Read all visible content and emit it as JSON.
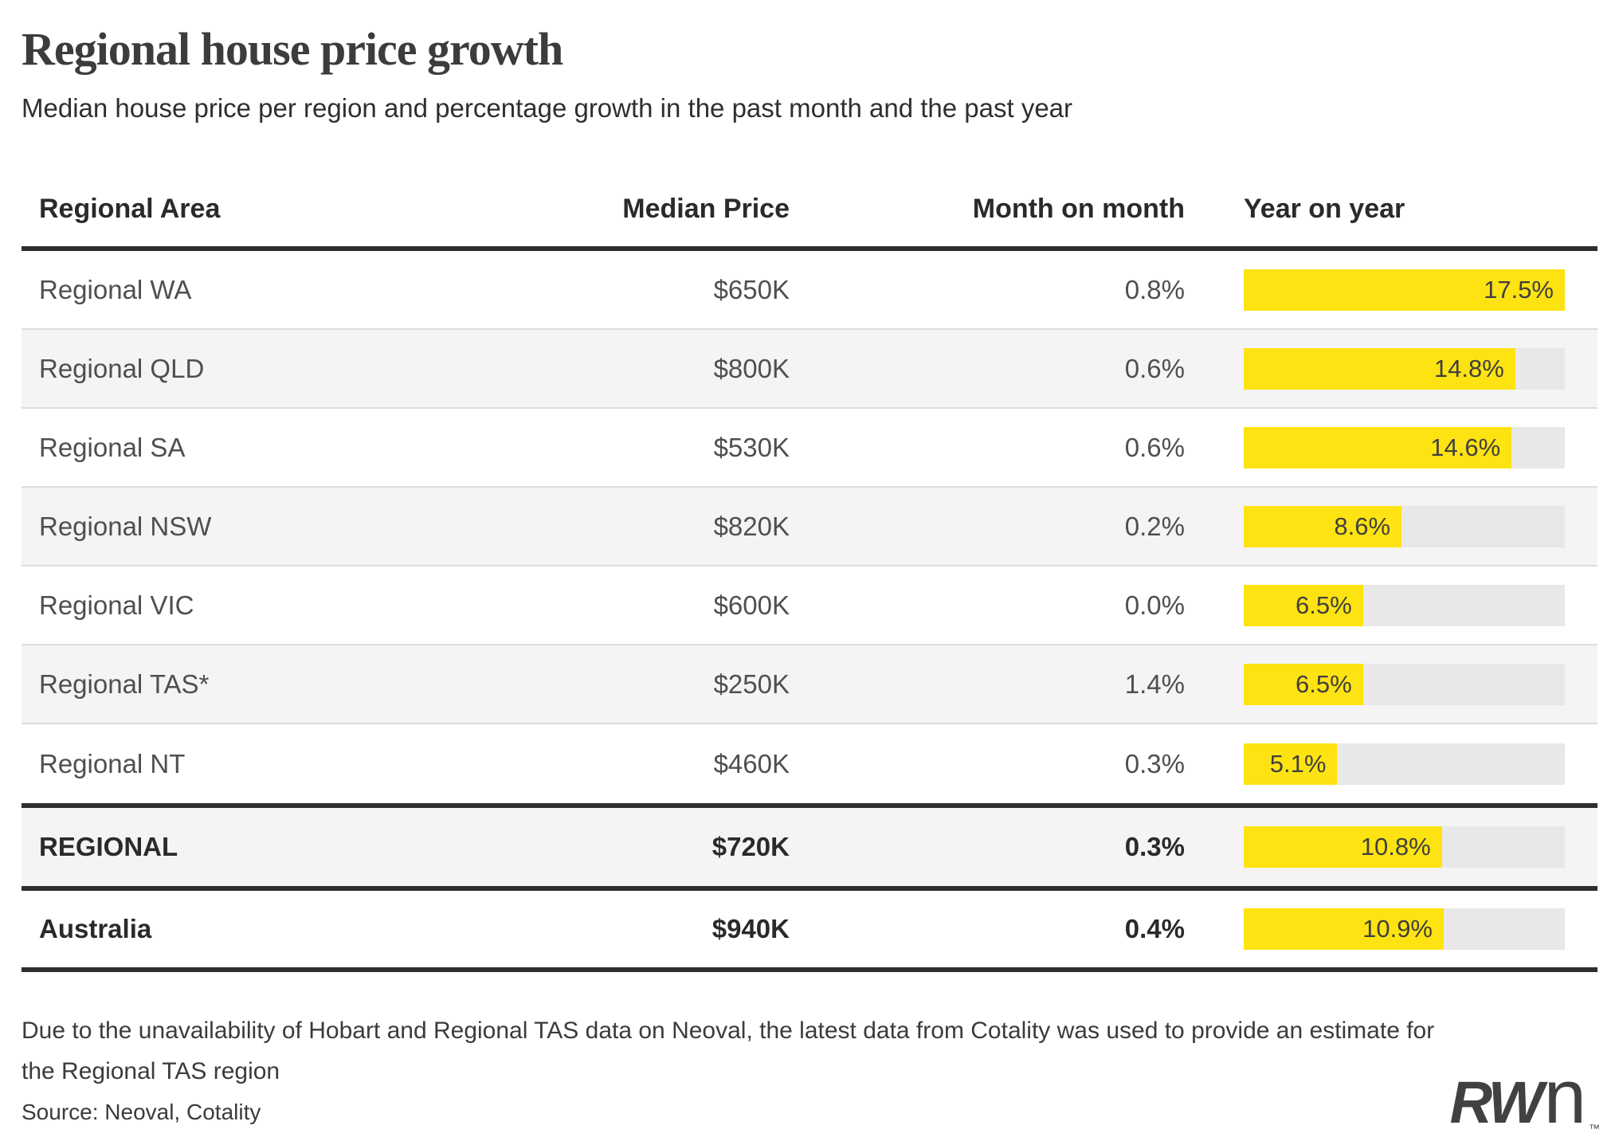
{
  "title": "Regional house price growth",
  "subtitle": "Median house price per region and percentage growth in the past month and the past year",
  "table": {
    "headers": {
      "region": "Regional Area",
      "price": "Median Price",
      "month": "Month on month",
      "year": "Year on year"
    },
    "max_year": 17.5,
    "rows": [
      {
        "region": "Regional WA",
        "price": "$650K",
        "month": "0.8%",
        "year": 17.5,
        "year_label": "17.5%"
      },
      {
        "region": "Regional QLD",
        "price": "$800K",
        "month": "0.6%",
        "year": 14.8,
        "year_label": "14.8%"
      },
      {
        "region": "Regional SA",
        "price": "$530K",
        "month": "0.6%",
        "year": 14.6,
        "year_label": "14.6%"
      },
      {
        "region": "Regional NSW",
        "price": "$820K",
        "month": "0.2%",
        "year": 8.6,
        "year_label": "8.6%"
      },
      {
        "region": "Regional VIC",
        "price": "$600K",
        "month": "0.0%",
        "year": 6.5,
        "year_label": "6.5%"
      },
      {
        "region": "Regional TAS*",
        "price": "$250K",
        "month": "1.4%",
        "year": 6.5,
        "year_label": "6.5%"
      },
      {
        "region": "Regional NT",
        "price": "$460K",
        "month": "0.3%",
        "year": 5.1,
        "year_label": "5.1%"
      },
      {
        "region": "REGIONAL",
        "price": "$720K",
        "month": "0.3%",
        "year": 10.8,
        "year_label": "10.8%"
      },
      {
        "region": "Australia",
        "price": "$940K",
        "month": "0.4%",
        "year": 10.9,
        "year_label": "10.9%"
      }
    ]
  },
  "footnote": "Due to the unavailability of Hobart and Regional TAS data on Neoval, the latest data from Cotality was used to provide an estimate for the Regional TAS region",
  "source": "Source: Neoval, Cotality",
  "logo": {
    "rw": "RW",
    "n": "n",
    "tm": "™"
  },
  "colors": {
    "accent_yellow": "#fde312",
    "bar_track": "#e8e8e8",
    "row_stripe": "#f4f4f4",
    "rule_dark": "#2e2e2e",
    "row_divider": "#dcdcdc"
  },
  "chart_data": {
    "type": "bar",
    "title": "Regional house price growth",
    "subtitle": "Median house price per region and percentage growth in the past month and the past year",
    "categories": [
      "Regional WA",
      "Regional QLD",
      "Regional SA",
      "Regional NSW",
      "Regional VIC",
      "Regional TAS*",
      "Regional NT",
      "REGIONAL",
      "Australia"
    ],
    "series": [
      {
        "name": "Median Price ($K)",
        "values": [
          650,
          800,
          530,
          820,
          600,
          250,
          460,
          720,
          940
        ]
      },
      {
        "name": "Month on month (%)",
        "values": [
          0.8,
          0.6,
          0.6,
          0.2,
          0.0,
          1.4,
          0.3,
          0.3,
          0.4
        ]
      },
      {
        "name": "Year on year (%)",
        "values": [
          17.5,
          14.8,
          14.6,
          8.6,
          6.5,
          6.5,
          5.1,
          10.8,
          10.9
        ]
      }
    ],
    "bar_series": "Year on year (%)",
    "orientation": "horizontal",
    "xlim": [
      0,
      17.5
    ],
    "grid": false,
    "legend": false,
    "annotations": [
      "Due to the unavailability of Hobart and Regional TAS data on Neoval, the latest data from Cotality was used to provide an estimate for the Regional TAS region",
      "Source: Neoval, Cotality"
    ]
  }
}
